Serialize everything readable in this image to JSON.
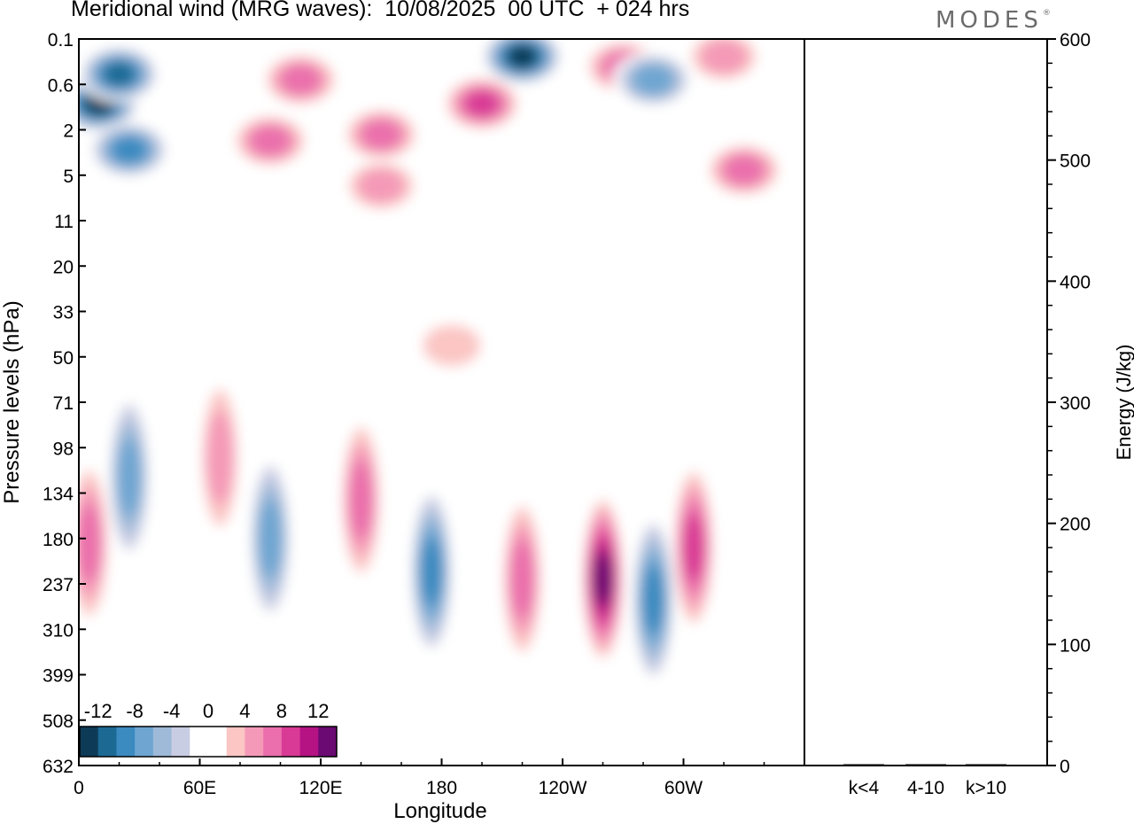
{
  "title": "Meridional wind (MRG waves):  10/08/2025  00 UTC  + 024 hrs",
  "logo": "MODES",
  "logo_mark": "®",
  "chart_data": [
    {
      "type": "heatmap",
      "title": "Meridional wind (MRG waves)",
      "xlabel": "Longitude",
      "ylabel": "Pressure levels (hPa)",
      "x_ticks": [
        "0",
        "60E",
        "120E",
        "180",
        "120W",
        "60W"
      ],
      "y_ticks": [
        "0.1",
        "0.6",
        "2",
        "5",
        "11",
        "20",
        "33",
        "50",
        "71",
        "98",
        "134",
        "180",
        "237",
        "310",
        "399",
        "508",
        "632"
      ],
      "colorbar": {
        "labels": [
          "-12",
          "-8",
          "-4",
          "0",
          "4",
          "8",
          "12"
        ],
        "levels": [
          -14,
          -12,
          -10,
          -8,
          -6,
          -4,
          -2,
          0,
          2,
          4,
          6,
          8,
          10,
          12,
          14
        ],
        "colors": [
          "#0d3b57",
          "#1c6a94",
          "#3b8ac0",
          "#6ea6d1",
          "#9fbad9",
          "#c9cde3",
          "#ffffff",
          "#ffffff",
          "#fbc6c4",
          "#f49ab8",
          "#ea6fac",
          "#d93a95",
          "#b51384",
          "#6a0a72"
        ]
      },
      "features": [
        {
          "lon": 10,
          "level": 1,
          "value": -14
        },
        {
          "lon": 25,
          "level": 3,
          "value": -10
        },
        {
          "lon": 20,
          "level": 0.4,
          "value": -12
        },
        {
          "lon": 110,
          "level": 0.5,
          "value": 7
        },
        {
          "lon": 95,
          "level": 2.5,
          "value": 8
        },
        {
          "lon": 150,
          "level": 2.2,
          "value": 8
        },
        {
          "lon": 150,
          "level": 6,
          "value": 5
        },
        {
          "lon": 200,
          "level": 1,
          "value": 9
        },
        {
          "lon": 220,
          "level": 0.2,
          "value": -13
        },
        {
          "lon": 270,
          "level": 0.3,
          "value": 8
        },
        {
          "lon": 285,
          "level": 0.5,
          "value": -7
        },
        {
          "lon": 320,
          "level": 0.2,
          "value": 6
        },
        {
          "lon": 330,
          "level": 4.5,
          "value": 7
        },
        {
          "lon": 25,
          "level": 120,
          "value": -8
        },
        {
          "lon": 70,
          "level": 105,
          "value": 5
        },
        {
          "lon": 95,
          "level": 180,
          "value": -7
        },
        {
          "lon": 140,
          "level": 140,
          "value": 8
        },
        {
          "lon": 175,
          "level": 220,
          "value": -9
        },
        {
          "lon": 220,
          "level": 230,
          "value": 8
        },
        {
          "lon": 260,
          "level": 230,
          "value": 13
        },
        {
          "lon": 285,
          "level": 260,
          "value": -10
        },
        {
          "lon": 305,
          "level": 190,
          "value": 10
        },
        {
          "lon": 5,
          "level": 185,
          "value": 7
        },
        {
          "lon": 185,
          "level": 45,
          "value": 3
        }
      ]
    },
    {
      "type": "bar",
      "ylabel": "Energy (J/kg)",
      "categories": [
        "k<4",
        "4-10",
        "k>10"
      ],
      "values": [
        0,
        1,
        0
      ],
      "ylim": [
        0,
        600
      ],
      "y_ticks": [
        "0",
        "100",
        "200",
        "300",
        "400",
        "500",
        "600"
      ]
    }
  ]
}
